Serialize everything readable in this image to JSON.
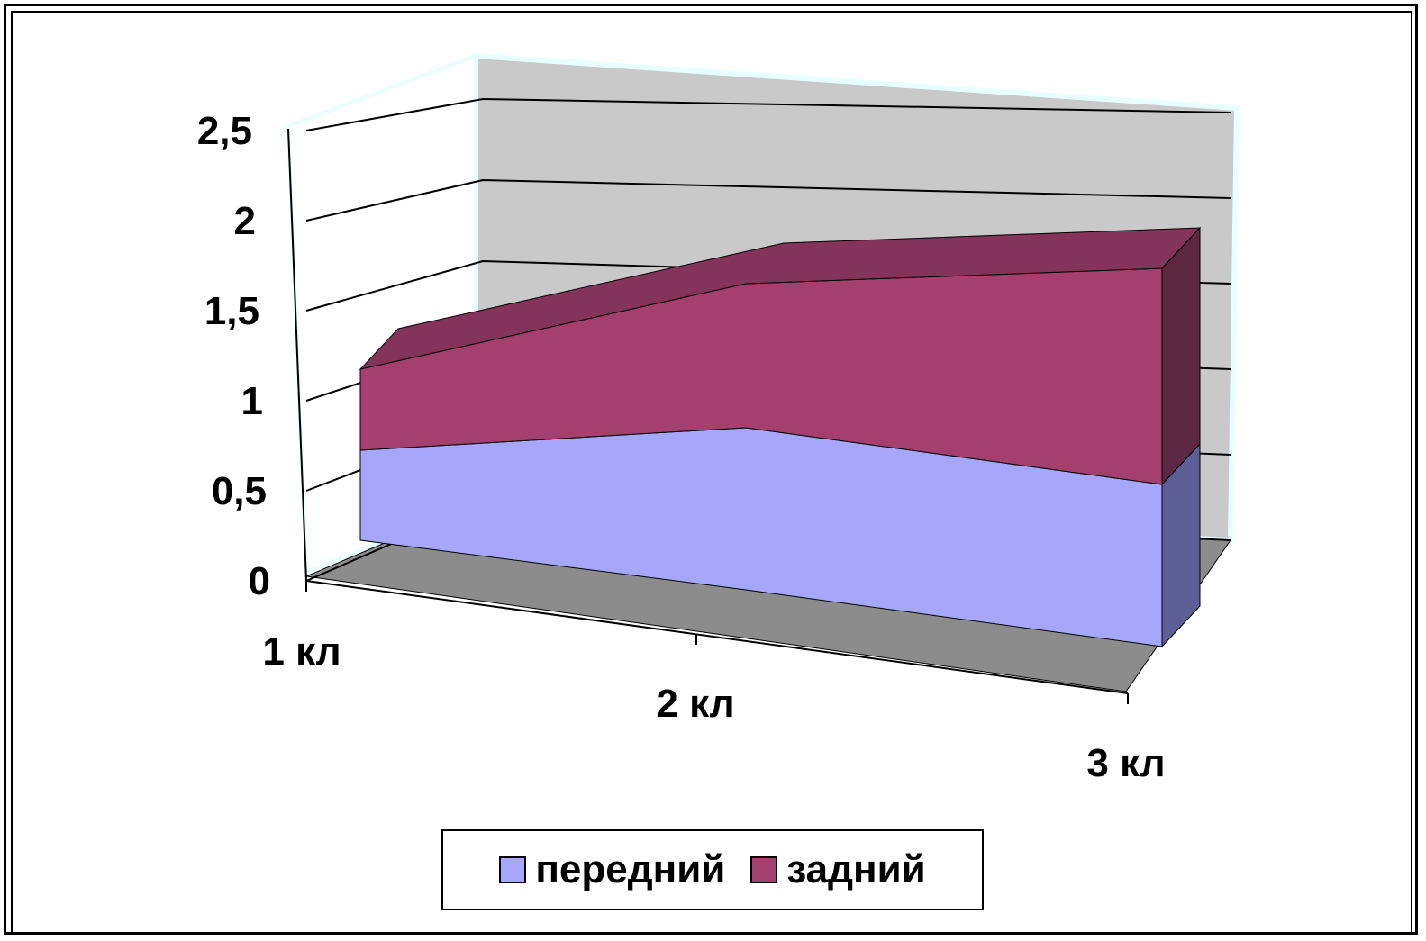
{
  "chart_data": {
    "type": "area",
    "categories": [
      "1 кл",
      "2 кл",
      "3 кл"
    ],
    "series": [
      {
        "name": "передний",
        "values": [
          0.5,
          0.9,
          0.9
        ],
        "color": "#a6a6fa"
      },
      {
        "name": "задний",
        "values": [
          0.45,
          0.8,
          1.2
        ],
        "color": "#a43f6e"
      }
    ],
    "stacked": true,
    "ylim": [
      0,
      2.5
    ],
    "ticks": [
      "0",
      "0,5",
      "1",
      "1,5",
      "2",
      "2,5"
    ],
    "grid": true,
    "legend": "bottom",
    "three_d": true
  },
  "legend": {
    "items": [
      {
        "label": "передний",
        "color": "#a6a6fa"
      },
      {
        "label": "задний",
        "color": "#a43f6e"
      }
    ]
  }
}
